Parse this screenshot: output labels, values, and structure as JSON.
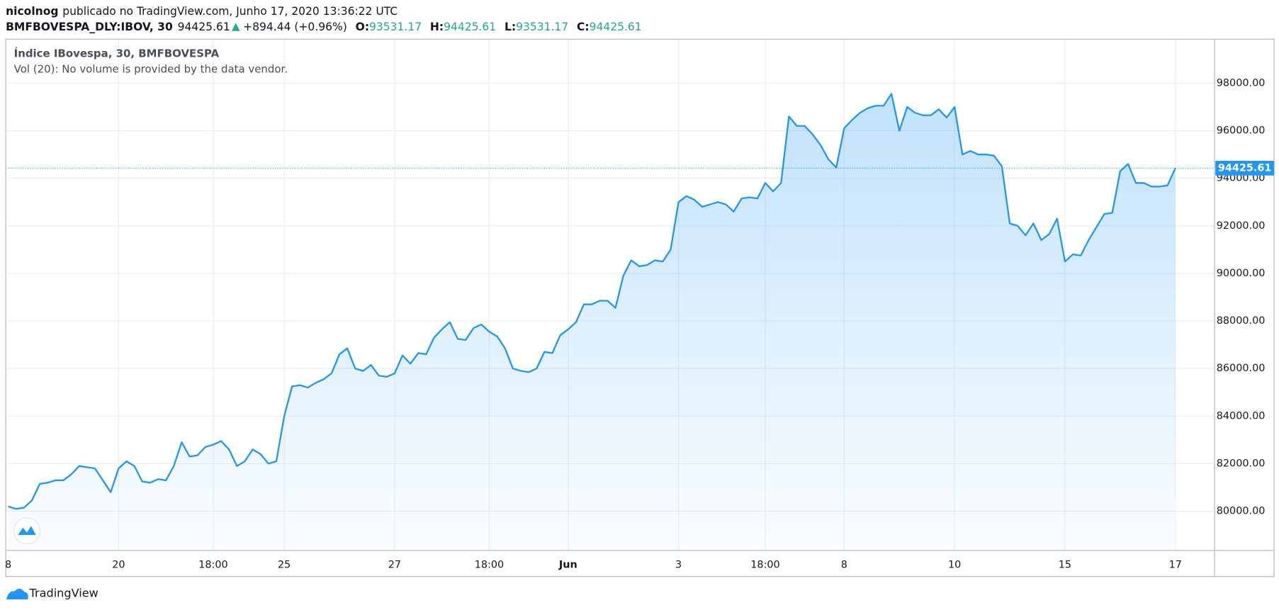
{
  "header": {
    "author": "nicolnog",
    "published": "publicado no TradingView.com, Junho 17, 2020 13:36:22 UTC",
    "symbol": "BMFBOVESPA_DLY:IBOV, 30",
    "price": "94425.61",
    "change": "+894.44 (+0.96%)",
    "ohlc": [
      {
        "label": "O:",
        "value": "93531.17"
      },
      {
        "label": "H:",
        "value": "94425.61"
      },
      {
        "label": "L:",
        "value": "93531.17"
      },
      {
        "label": "C:",
        "value": "94425.61"
      }
    ]
  },
  "footer": {
    "brand": "TradingView"
  },
  "chart_data": {
    "type": "area",
    "annotation": "Vol (20): No volume is provided by the data vendor.",
    "categories": [
      "8",
      null,
      null,
      null,
      null,
      null,
      null,
      null,
      null,
      null,
      null,
      null,
      null,
      null,
      "20",
      null,
      null,
      null,
      null,
      null,
      null,
      null,
      null,
      null,
      null,
      null,
      "18:00",
      null,
      null,
      null,
      null,
      null,
      null,
      null,
      null,
      "25",
      null,
      null,
      null,
      null,
      null,
      null,
      null,
      null,
      null,
      null,
      null,
      null,
      null,
      "27",
      null,
      null,
      null,
      null,
      null,
      null,
      null,
      null,
      null,
      null,
      null,
      "18:00",
      null,
      null,
      null,
      null,
      null,
      null,
      null,
      null,
      null,
      "Jun",
      null,
      null,
      null,
      null,
      null,
      null,
      null,
      null,
      null,
      null,
      null,
      null,
      null,
      "3",
      null,
      null,
      null,
      null,
      null,
      null,
      null,
      null,
      null,
      null,
      "18:00",
      null,
      null,
      null,
      null,
      null,
      null,
      null,
      null,
      null,
      "8",
      null,
      null,
      null,
      null,
      null,
      null,
      null,
      null,
      null,
      null,
      null,
      null,
      null,
      "10",
      null,
      null,
      null,
      null,
      null,
      null,
      null,
      null,
      null,
      null,
      null,
      null,
      null,
      "15",
      null,
      null,
      null,
      null,
      null,
      null,
      null,
      null,
      null,
      null,
      null,
      null,
      null,
      "17"
    ],
    "series": [
      {
        "name": "Índice IBovespa, 30, BMFBOVESPA",
        "color": "#2196f3",
        "values": [
          80200,
          80100,
          80150,
          80450,
          81150,
          81200,
          81300,
          81300,
          81550,
          81900,
          81850,
          81800,
          81300,
          80800,
          81800,
          82100,
          81900,
          81250,
          81200,
          81350,
          81300,
          81900,
          82900,
          82300,
          82350,
          82700,
          82800,
          82950,
          82600,
          81900,
          82100,
          82600,
          82400,
          82000,
          82100,
          84000,
          85250,
          85300,
          85200,
          85400,
          85550,
          85800,
          86600,
          86850,
          86000,
          85900,
          86150,
          85700,
          85650,
          85800,
          86550,
          86200,
          86650,
          86600,
          87300,
          87650,
          87950,
          87250,
          87200,
          87700,
          87850,
          87550,
          87350,
          86850,
          86000,
          85900,
          85850,
          86000,
          86700,
          86650,
          87400,
          87650,
          87950,
          88700,
          88700,
          88850,
          88850,
          88550,
          89900,
          90550,
          90300,
          90350,
          90550,
          90500,
          91000,
          93000,
          93250,
          93100,
          92800,
          92900,
          93000,
          92900,
          92600,
          93150,
          93200,
          93150,
          93800,
          93450,
          93800,
          96600,
          96200,
          96200,
          95850,
          95400,
          94800,
          94450,
          96100,
          96450,
          96750,
          96950,
          97050,
          97050,
          97550,
          96000,
          97000,
          96750,
          96650,
          96650,
          96900,
          96550,
          97000,
          95000,
          95150,
          95000,
          95000,
          94950,
          94500,
          92100,
          92000,
          91600,
          92100,
          91400,
          91650,
          92300,
          90500,
          90800,
          90750,
          91400,
          91950,
          92500,
          92550,
          94300,
          94600,
          93800,
          93800,
          93650,
          93650,
          93700,
          94425.61
        ]
      }
    ],
    "ylim": [
      78350,
      99850
    ],
    "yticks": [
      {
        "value": 80000,
        "label": "80000.00"
      },
      {
        "value": 82000,
        "label": "82000.00"
      },
      {
        "value": 84000,
        "label": "84000.00"
      },
      {
        "value": 86000,
        "label": "86000.00"
      },
      {
        "value": 88000,
        "label": "88000.00"
      },
      {
        "value": 90000,
        "label": "90000.00"
      },
      {
        "value": 92000,
        "label": "92000.00"
      },
      {
        "value": 94000,
        "label": "94000.00"
      },
      {
        "value": 96000,
        "label": "96000.00"
      },
      {
        "value": 98000,
        "label": "98000.00"
      }
    ],
    "grid": true
  }
}
